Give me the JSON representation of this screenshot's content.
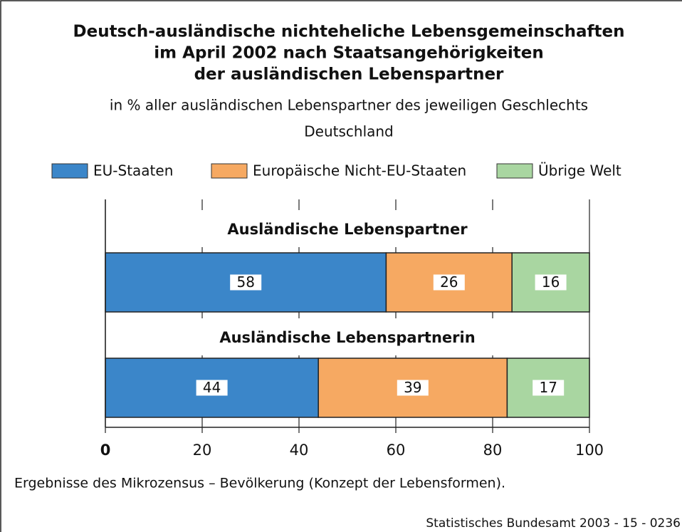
{
  "chart_data": {
    "type": "stacked_bar_horizontal",
    "title": [
      "Deutsch-ausländische nichteheliche Lebensgemeinschaften",
      "im April 2002 nach Staatsangehörigkeiten",
      "der ausländischen Lebenspartner"
    ],
    "subtitle": "in % aller ausländischen Lebenspartner des jeweiligen Geschlechts",
    "region": "Deutschland",
    "categories": [
      "Ausländische Lebenspartner",
      "Ausländische Lebenspartnerin"
    ],
    "series": [
      {
        "name": "EU-Staaten",
        "color": "#3b86c9",
        "values": [
          58,
          44
        ]
      },
      {
        "name": "Europäische Nicht-EU-Staaten",
        "color": "#f6a962",
        "values": [
          26,
          39
        ]
      },
      {
        "name": "Übrige Welt",
        "color": "#a9d6a1",
        "values": [
          16,
          17
        ]
      }
    ],
    "xlim": [
      0,
      100
    ],
    "xticks": [
      0,
      20,
      40,
      60,
      80,
      100
    ],
    "grid": true,
    "note": "Ergebnisse des Mikrozensus – Bevölkerung (Konzept der Lebensformen).",
    "source": "Statistisches Bundesamt 2003 - 15 - 0236"
  }
}
